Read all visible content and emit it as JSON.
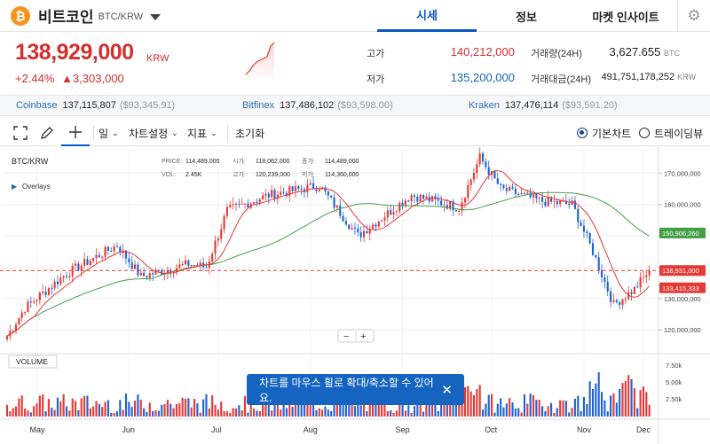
{
  "header": {
    "coin_logo": "₿",
    "coin_name": "비트코인",
    "pair": "BTC/KRW",
    "tabs": [
      "시세",
      "정보",
      "마켓 인사이트"
    ],
    "settings_icon": "gear-icon"
  },
  "summary": {
    "price": "138,929,000",
    "unit": "KRW",
    "change_pct": "+2.44%",
    "change_abs": "▲3,303,000",
    "high_label": "고가",
    "high_value": "140,212,000",
    "low_label": "저가",
    "low_value": "135,200,000",
    "volume_label": "거래량(24H)",
    "volume_value": "3,627.655",
    "volume_unit": "BTC",
    "amount_label": "거래대금(24H)",
    "amount_value": "491,751,178,252",
    "amount_unit": "KRW"
  },
  "exchanges": [
    {
      "name": "Coinbase",
      "krw": "137,115,807",
      "usd": "($93,345.91)"
    },
    {
      "name": "Bitfinex",
      "krw": "137,486,102",
      "usd": "($93,598.00)"
    },
    {
      "name": "Kraken",
      "krw": "137,476,114",
      "usd": "($93,591.20)"
    }
  ],
  "toolbar": {
    "period": "일",
    "chart_settings": "차트설정",
    "indicators": "지표",
    "reset": "초기화",
    "basic_chart": "기본차트",
    "tradingview": "트레이딩뷰"
  },
  "chart_data": {
    "type": "candlestick",
    "title": "BTC/KRW",
    "overlays_label": "Overlays",
    "ohlc_info": {
      "price_label": "PRICE:",
      "price": "114,489,000",
      "open_label": "시가:",
      "open": "118,062,000",
      "close_label": "종가:",
      "close": "114,489,000",
      "vol_label": "VOL:",
      "vol": "2.45K",
      "high_label": "고가:",
      "high": "120,239,000",
      "low_label": "저가:",
      "low": "114,360,000"
    },
    "x_labels": [
      "May",
      "Jun",
      "Jul",
      "Aug",
      "Sep",
      "Oct",
      "Nov",
      "Dec"
    ],
    "y_ticks": [
      "170,000,000",
      "160,000,000",
      "150,000,000",
      "140,000,000",
      "130,000,000",
      "120,000,000"
    ],
    "y_range": [
      113000000,
      178000000
    ],
    "markers": {
      "ma_long": "150,906,260",
      "current": "138,931,000",
      "ma_short": "133,415,333"
    },
    "volume_label": "VOLUME",
    "vol_ticks": [
      "7.50k",
      "5.00k",
      "2.50k"
    ],
    "zoom_minus": "−",
    "zoom_plus": "+",
    "key_prices": [
      {
        "date": "May 1",
        "price": 118000000
      },
      {
        "date": "May 7",
        "price": 127000000
      },
      {
        "date": "May 21",
        "price": 138000000
      },
      {
        "date": "Jun 7",
        "price": 147000000
      },
      {
        "date": "Jun 15",
        "price": 137000000
      },
      {
        "date": "Jul 1",
        "price": 141000000
      },
      {
        "date": "Jul 7",
        "price": 140000000
      },
      {
        "date": "Jul 14",
        "price": 158000000
      },
      {
        "date": "Jul 28",
        "price": 163000000
      },
      {
        "date": "Aug 14",
        "price": 166000000
      },
      {
        "date": "Aug 27",
        "price": 150000000
      },
      {
        "date": "Sep 14",
        "price": 163000000
      },
      {
        "date": "Sep 30",
        "price": 159000000
      },
      {
        "date": "Oct 7",
        "price": 175000000
      },
      {
        "date": "Oct 14",
        "price": 165000000
      },
      {
        "date": "Oct 28",
        "price": 161000000
      },
      {
        "date": "Nov 7",
        "price": 160000000
      },
      {
        "date": "Nov 14",
        "price": 145000000
      },
      {
        "date": "Nov 21",
        "price": 128000000
      },
      {
        "date": "Nov 28",
        "price": 133000000
      },
      {
        "date": "Dec 3",
        "price": 138929000
      }
    ]
  },
  "toast": {
    "text": "차트를 마우스 휠로 확대/축소할 수 있어요.",
    "close": "✕"
  },
  "colors": {
    "up": "#e53935",
    "down": "#1e63d6",
    "ma_short": "#e53935",
    "ma_long": "#43a047",
    "accent": "#0b57c4"
  }
}
